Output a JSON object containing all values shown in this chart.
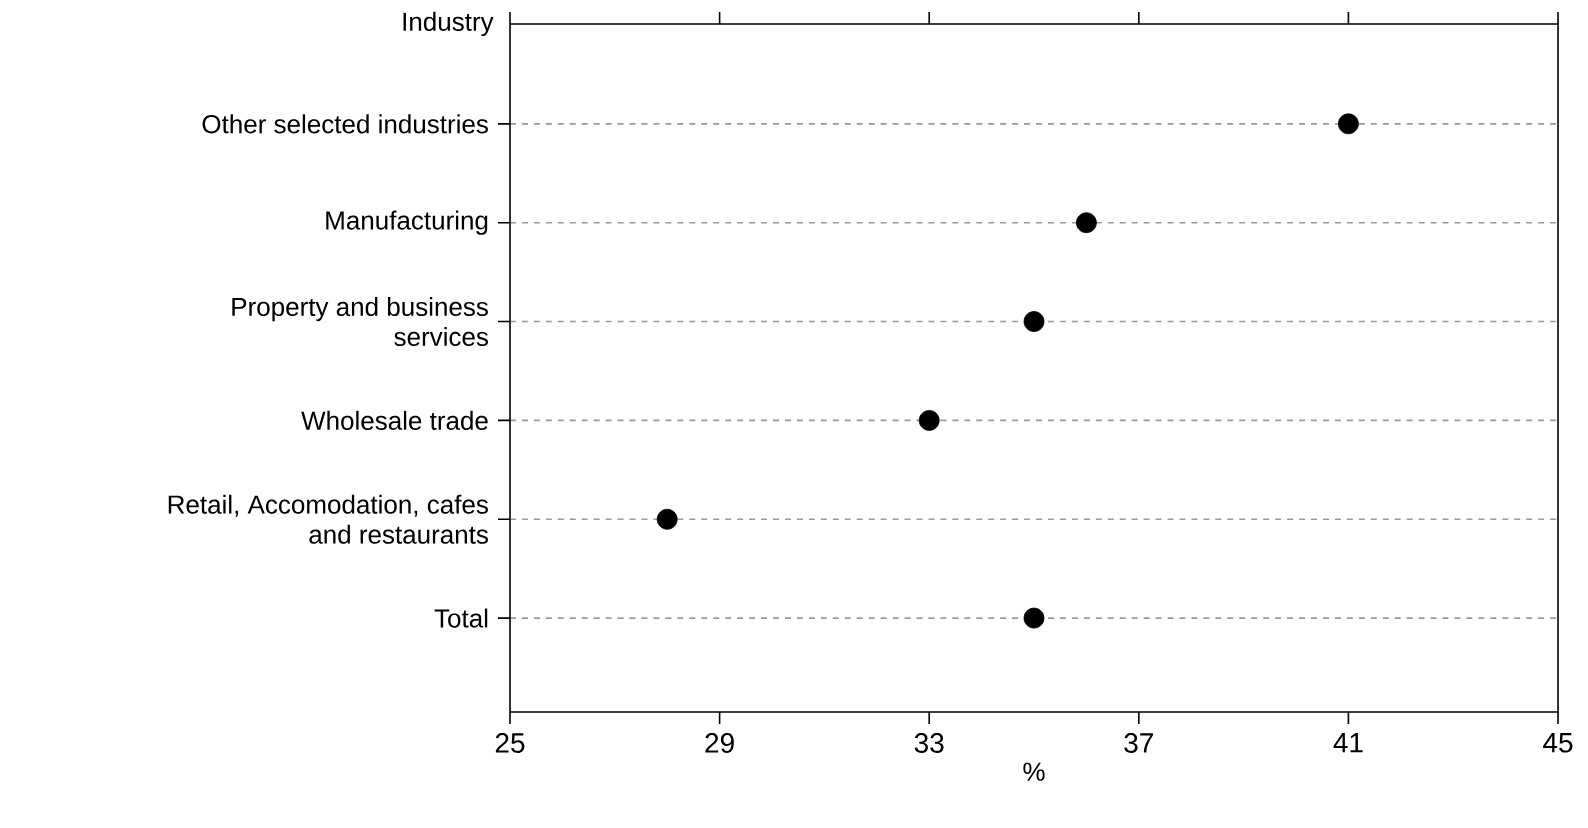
{
  "chart_data": {
    "type": "scatter",
    "orientation": "horizontal",
    "ylabel": "Industry",
    "xlabel": "%",
    "categories": [
      "Other selected industries",
      "Manufacturing",
      "Property and business services",
      "Wholesale trade",
      "Retail, Accomodation, cafes and restaurants",
      "Total"
    ],
    "values": [
      41,
      36,
      35,
      33,
      28,
      35
    ],
    "color": "#000000",
    "xlim": [
      25,
      45
    ],
    "xticks": [
      25,
      29,
      33,
      37,
      41,
      45
    ],
    "grid": "y"
  }
}
